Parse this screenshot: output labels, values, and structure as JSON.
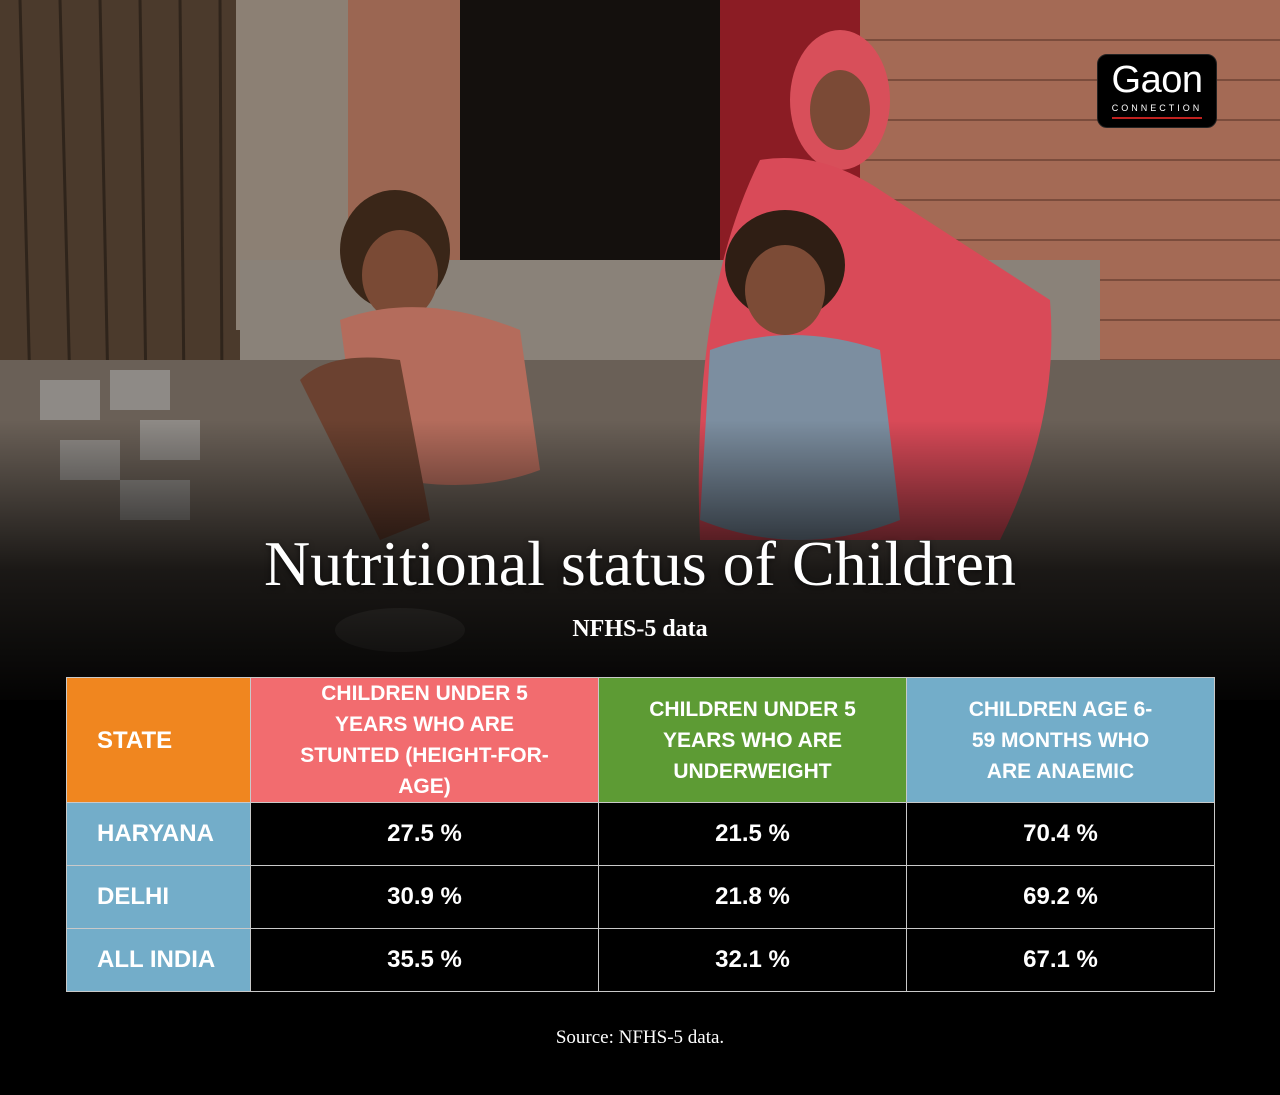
{
  "logo": {
    "main": "Gaon",
    "sub": "CONNECTION"
  },
  "colors": {
    "state_header": "#f0861f",
    "stunted_header": "#f26c6f",
    "underweight_header": "#5d9b34",
    "anaemic_header": "#73adc9",
    "state_cell": "#73adc9"
  },
  "chart_data": {
    "type": "table",
    "title": "Nutritional status of Children",
    "subtitle": "NFHS-5 data",
    "columns": [
      "STATE",
      "CHILDREN UNDER 5 YEARS WHO ARE STUNTED (HEIGHT-FOR-AGE)",
      "CHILDREN UNDER 5 YEARS WHO ARE UNDERWEIGHT",
      "CHILDREN AGE 6-59 MONTHS WHO ARE ANAEMIC"
    ],
    "rows": [
      {
        "state": "HARYANA",
        "stunted": "27.5 %",
        "underweight": "21.5 %",
        "anaemic": "70.4 %"
      },
      {
        "state": "DELHI",
        "stunted": "30.9 %",
        "underweight": "21.8 %",
        "anaemic": "69.2 %"
      },
      {
        "state": "ALL INDIA",
        "stunted": "35.5 %",
        "underweight": "32.1 %",
        "anaemic": "67.1 %"
      }
    ],
    "source": "Source: NFHS-5 data."
  }
}
